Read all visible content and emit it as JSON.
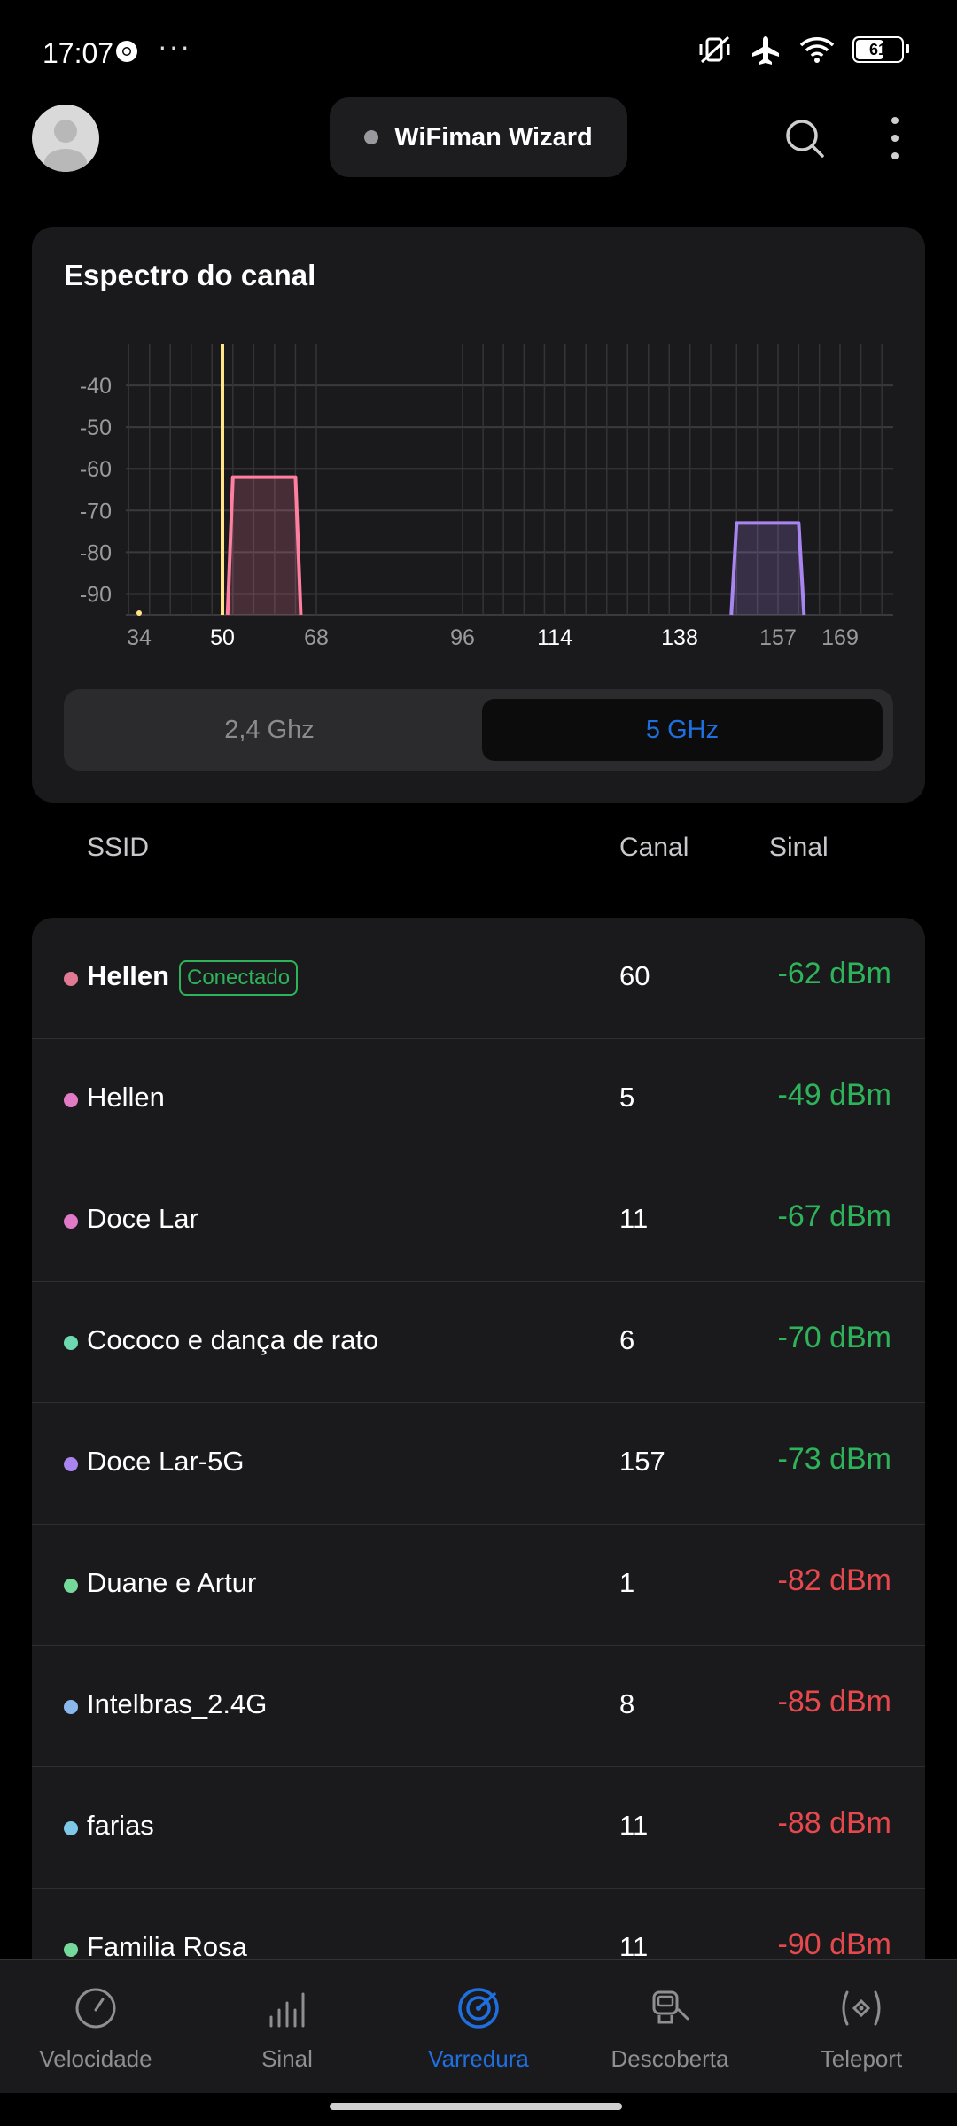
{
  "status_bar": {
    "time": "17:07",
    "dots": "···",
    "battery": "61",
    "battery_level": 0.61,
    "icons": [
      "chrome-icon",
      "vibrate-off-icon",
      "airplane-icon",
      "wifi-icon",
      "battery-icon"
    ]
  },
  "header": {
    "wizard_label": "WiFiman Wizard",
    "icons": [
      "avatar",
      "search-icon",
      "more-vertical-icon"
    ]
  },
  "spectrum": {
    "title": "Espectro do canal",
    "toggle": {
      "band_24": "2,4 Ghz",
      "band_5": "5 GHz",
      "selected": "5 GHz"
    }
  },
  "chart_data": {
    "type": "area",
    "title": "",
    "xlabel": "",
    "ylabel": "",
    "x_ticks": [
      "34",
      "50",
      "68",
      "96",
      "114",
      "138",
      "157",
      "169"
    ],
    "x_ticks_highlight": [
      "50",
      "114",
      "138"
    ],
    "y_ticks": [
      "-40",
      "-50",
      "-60",
      "-70",
      "-80",
      "-90"
    ],
    "ylim": [
      -95,
      -30
    ],
    "grid": true,
    "series": [
      {
        "channel_from": 52,
        "channel_to": 64,
        "signal": -62,
        "color": "#ff7fa0"
      },
      {
        "channel_from": 149,
        "channel_to": 161,
        "signal": -73,
        "color": "#a985f0"
      }
    ],
    "marker_channel": 50,
    "marker_color": "#ffe48a"
  },
  "columns": {
    "ssid": "SSID",
    "channel": "Canal",
    "signal": "Sinal"
  },
  "networks": [
    {
      "ssid": "Hellen",
      "badge": "Conectado",
      "channel": "60",
      "signal": "-62 dBm",
      "dot": "#e07a94",
      "sig_color": "#2eb35a"
    },
    {
      "ssid": "Hellen",
      "channel": "5",
      "signal": "-49 dBm",
      "dot": "#e27bc4",
      "sig_color": "#2eb35a"
    },
    {
      "ssid": "Doce Lar",
      "channel": "11",
      "signal": "-67 dBm",
      "dot": "#e07ac8",
      "sig_color": "#2eb35a"
    },
    {
      "ssid": "Cococo e dança de rato",
      "channel": "6",
      "signal": "-70 dBm",
      "dot": "#6ed8b0",
      "sig_color": "#2eb35a"
    },
    {
      "ssid": "Doce Lar-5G",
      "channel": "157",
      "signal": "-73 dBm",
      "dot": "#a985f0",
      "sig_color": "#2eb35a"
    },
    {
      "ssid": "Duane e Artur",
      "channel": "1",
      "signal": "-82 dBm",
      "dot": "#74d99a",
      "sig_color": "#e5484d"
    },
    {
      "ssid": "Intelbras_2.4G",
      "channel": "8",
      "signal": "-85 dBm",
      "dot": "#8bb8ec",
      "sig_color": "#e5484d"
    },
    {
      "ssid": "farias",
      "channel": "11",
      "signal": "-88 dBm",
      "dot": "#7ec8e8",
      "sig_color": "#e5484d"
    },
    {
      "ssid": "Familia Rosa",
      "channel": "11",
      "signal": "-90 dBm",
      "dot": "#74d99a",
      "sig_color": "#e5484d"
    }
  ],
  "bottom_nav": [
    {
      "label": "Velocidade",
      "icon": "speedometer-icon"
    },
    {
      "label": "Sinal",
      "icon": "signal-bars-icon"
    },
    {
      "label": "Varredura",
      "icon": "radar-icon",
      "active": true
    },
    {
      "label": "Descoberta",
      "icon": "discovery-icon"
    },
    {
      "label": "Teleport",
      "icon": "teleport-icon"
    }
  ],
  "colors": {
    "accent": "#1f6fe0",
    "good": "#2eb35a",
    "bad": "#e5484d",
    "card": "#1a1a1c"
  }
}
